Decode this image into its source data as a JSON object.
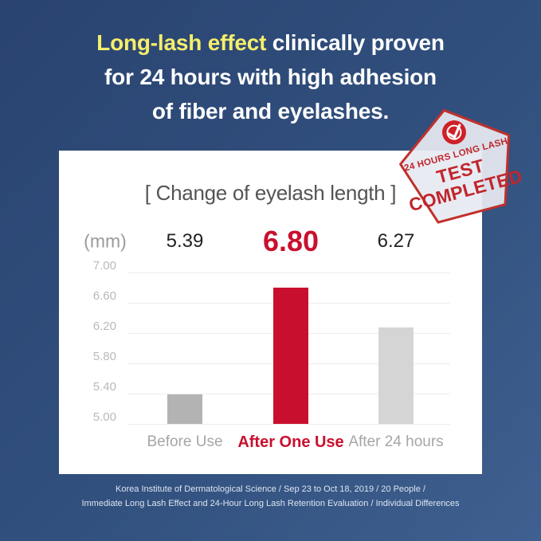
{
  "header": {
    "highlight": "Long-lash effect",
    "line1_rest": " clinically proven",
    "line2": "for 24 hours with high adhesion",
    "line3": "of fiber and eyelashes.",
    "highlight_color": "#f5ee6b"
  },
  "stamp": {
    "line1": "24 HOURS LONG LASH",
    "line2": "TEST",
    "line3": "COMPLETED",
    "icon": "check-circle-icon",
    "color": "#c0262c"
  },
  "chart_data": {
    "type": "bar",
    "title": "[ Change of eyelash length ]",
    "unit_label": "(mm)",
    "categories": [
      "Before Use",
      "After One Use",
      "After 24 hours"
    ],
    "values": [
      5.39,
      6.8,
      6.27
    ],
    "value_labels": [
      "5.39",
      "6.80",
      "6.27"
    ],
    "highlight_index": 1,
    "bar_colors": [
      "#b3b3b3",
      "#c8102e",
      "#d5d5d5"
    ],
    "y_ticks": [
      "7.00",
      "6.60",
      "6.20",
      "5.80",
      "5.40",
      "5.00"
    ],
    "ylim": [
      5.0,
      7.0
    ],
    "grid": true,
    "legend": false,
    "accent_color": "#c8102e"
  },
  "footer": {
    "line1": "Korea Institute of Dermatological Science / Sep 23 to Oct 18, 2019 / 20 People /",
    "line2": "Immediate Long Lash Effect and 24-Hour Long Lash Retention Evaluation / Individual Differences"
  }
}
